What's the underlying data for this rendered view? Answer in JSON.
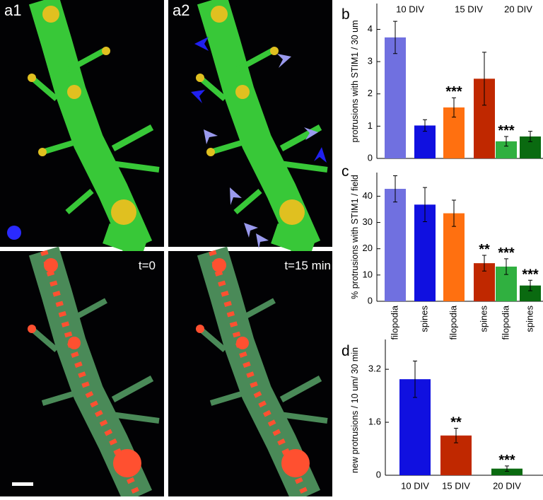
{
  "image_labels": [
    "a1",
    "a2",
    "t=0",
    "t=15 min"
  ],
  "chart_data": [
    {
      "type": "bar",
      "panel_label": "b",
      "ylabel": "protrusions with STIM1 / 30 um",
      "group_labels": [
        "10 DIV",
        "15 DIV",
        "20 DIV"
      ],
      "values": [
        3.75,
        1.02,
        1.58,
        2.47,
        0.53,
        0.68
      ],
      "errors": [
        0.5,
        0.18,
        0.3,
        0.82,
        0.15,
        0.16
      ],
      "colors": [
        "#7070e0",
        "#1010e0",
        "#ff7010",
        "#c02800",
        "#30b040",
        "#0a6a10"
      ],
      "annotations": [
        null,
        null,
        "***",
        null,
        "***",
        null
      ],
      "ylim": [
        0,
        4.8
      ],
      "yticks": [
        0,
        1,
        2,
        3,
        4
      ]
    },
    {
      "type": "bar",
      "panel_label": "c",
      "ylabel": "% protrusions with STIM1 / field",
      "categories": [
        "filopodia",
        "spines",
        "filopodia",
        "spines",
        "filopodia",
        "spines"
      ],
      "values": [
        42.8,
        36.8,
        33.5,
        14.5,
        13.2,
        6
      ],
      "errors": [
        5,
        6.5,
        5,
        3,
        3,
        2
      ],
      "colors": [
        "#7070e0",
        "#1010e0",
        "#ff7010",
        "#c02800",
        "#30b040",
        "#0a6a10"
      ],
      "annotations": [
        null,
        null,
        null,
        "**",
        "***",
        "***"
      ],
      "ylim": [
        0,
        49
      ],
      "yticks": [
        0,
        10,
        20,
        30,
        40
      ]
    },
    {
      "type": "bar",
      "panel_label": "d",
      "ylabel": "new protrusions / 10 um/ 30 min",
      "categories": [
        "10 DIV",
        "15 DIV",
        "20 DIV"
      ],
      "values": [
        2.9,
        1.2,
        0.2
      ],
      "errors": [
        0.55,
        0.22,
        0.08
      ],
      "colors": [
        "#1010e0",
        "#c02800",
        "#0a6a10"
      ],
      "annotations": [
        null,
        "**",
        "***"
      ],
      "ylim": [
        0,
        4.1
      ],
      "yticks": [
        0,
        1.6,
        3.2
      ]
    }
  ]
}
